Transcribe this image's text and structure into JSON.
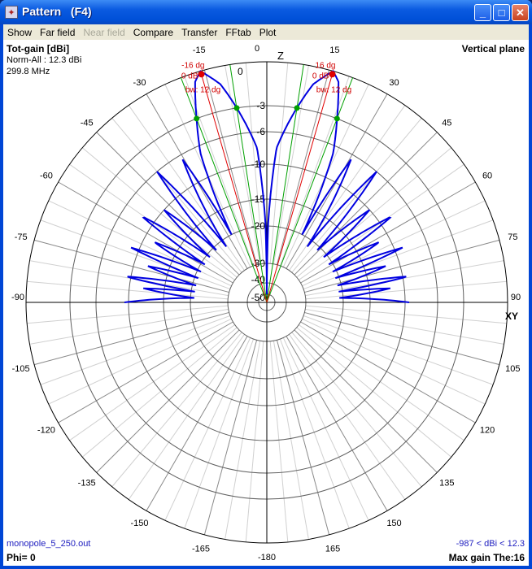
{
  "window": {
    "title": "Pattern   (F4)",
    "minimize": "_",
    "maximize": "□",
    "close": "✕"
  },
  "menu": [
    {
      "label": "Show",
      "enabled": true
    },
    {
      "label": "Far field",
      "enabled": true
    },
    {
      "label": "Near field",
      "enabled": false
    },
    {
      "label": "Compare",
      "enabled": true
    },
    {
      "label": "Transfer",
      "enabled": true
    },
    {
      "label": "FFtab",
      "enabled": true
    },
    {
      "label": "Plot",
      "enabled": true
    }
  ],
  "info": {
    "quantity": "Tot-gain [dBi]",
    "norm": "Norm-All : 12.3 dBi",
    "freq": "299.8 MHz",
    "plane": "Vertical plane",
    "file": "monopole_5_250.out",
    "phi": "Phi= 0",
    "range": "-987 < dBi < 12.3",
    "maxgain": "Max gain The:16"
  },
  "colors": {
    "pattern": "#0000e0",
    "marker_peak": "#e00000",
    "marker_3db": "#00a000",
    "grid": "#c8c8c8",
    "ring": "#505050"
  },
  "chart_data": {
    "type": "polar",
    "axis_top": "Z",
    "axis_right": "XY",
    "angle_labels": [
      {
        "deg": 0,
        "text": "0"
      },
      {
        "deg": -15,
        "text": "-15"
      },
      {
        "deg": 15,
        "text": "15"
      },
      {
        "deg": -30,
        "text": "-30"
      },
      {
        "deg": 30,
        "text": "30"
      },
      {
        "deg": -45,
        "text": "-45"
      },
      {
        "deg": 45,
        "text": "45"
      },
      {
        "deg": -60,
        "text": "-60"
      },
      {
        "deg": 60,
        "text": "60"
      },
      {
        "deg": -75,
        "text": "-75"
      },
      {
        "deg": 75,
        "text": "75"
      },
      {
        "deg": -90,
        "text": "-90"
      },
      {
        "deg": 90,
        "text": "90"
      },
      {
        "deg": -105,
        "text": "-105"
      },
      {
        "deg": 105,
        "text": "105"
      },
      {
        "deg": -120,
        "text": "-120"
      },
      {
        "deg": 120,
        "text": "120"
      },
      {
        "deg": -135,
        "text": "-135"
      },
      {
        "deg": 135,
        "text": "135"
      },
      {
        "deg": -150,
        "text": "-150"
      },
      {
        "deg": 150,
        "text": "150"
      },
      {
        "deg": -165,
        "text": "-165"
      },
      {
        "deg": 165,
        "text": "165"
      },
      {
        "deg": 180,
        "text": "-180"
      }
    ],
    "rings_db": [
      0,
      -3,
      -6,
      -10,
      -15,
      -20,
      -30,
      -40,
      -50
    ],
    "ring_labels": [
      "0",
      "-3",
      "-6",
      "-10",
      "-15",
      "-20",
      "-30",
      "-40",
      "-50"
    ],
    "pattern_right": [
      [
        0,
        -50
      ],
      [
        1,
        -19.5
      ],
      [
        3.6,
        -8
      ],
      [
        8.8,
        -3
      ],
      [
        12,
        -1.2
      ],
      [
        16,
        0
      ],
      [
        18,
        -0.6
      ],
      [
        20.9,
        -3
      ],
      [
        24,
        -7
      ],
      [
        26,
        -13
      ],
      [
        27.5,
        -20
      ],
      [
        30.5,
        -6.6
      ],
      [
        36,
        -22
      ],
      [
        40,
        -6
      ],
      [
        44,
        -21
      ],
      [
        48,
        -10
      ],
      [
        51.5,
        -21
      ],
      [
        55.4,
        -8.3
      ],
      [
        58.5,
        -21
      ],
      [
        61.8,
        -11.5
      ],
      [
        65,
        -21
      ],
      [
        68,
        -9
      ],
      [
        70.5,
        -21
      ],
      [
        73,
        -12
      ],
      [
        76.5,
        -21
      ],
      [
        79.6,
        -9.3
      ],
      [
        81.5,
        -21
      ],
      [
        83.5,
        -12
      ],
      [
        86.5,
        -21
      ],
      [
        90,
        -9.5
      ]
    ],
    "peak": {
      "deg": 16,
      "db": 0,
      "labels_left": [
        "-16 dg",
        "0 dB",
        "bw: 12 dg"
      ],
      "labels_right": [
        "16 dg",
        "0 dB",
        "bw: 12 dg"
      ]
    },
    "half_power_deg": [
      8.8,
      20.9
    ]
  }
}
